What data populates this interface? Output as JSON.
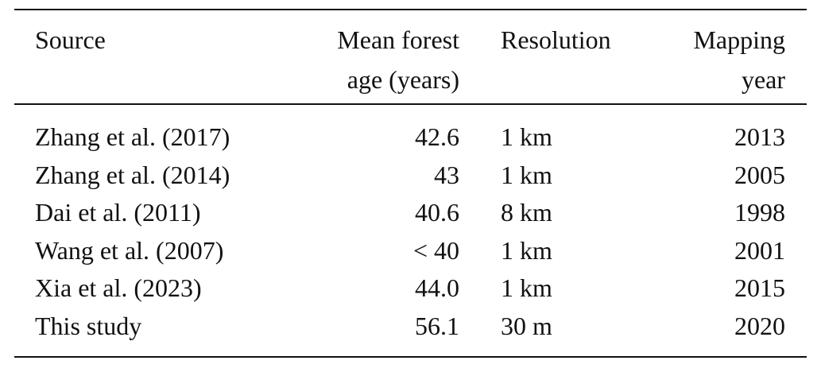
{
  "table": {
    "headers": [
      {
        "line1": "Source",
        "line2": ""
      },
      {
        "line1": "Mean forest",
        "line2": "age (years)"
      },
      {
        "line1": "Resolution",
        "line2": ""
      },
      {
        "line1": "Mapping",
        "line2": "year"
      }
    ],
    "rows": [
      [
        "Zhang et al. (2017)",
        "42.6",
        "1 km",
        "2013"
      ],
      [
        "Zhang et al. (2014)",
        "43",
        "1 km",
        "2005"
      ],
      [
        "Dai et al. (2011)",
        "40.6",
        "8 km",
        "1998"
      ],
      [
        "Wang et al. (2007)",
        "< 40",
        "1 km",
        "2001"
      ],
      [
        "Xia et al. (2023)",
        "44.0",
        "1 km",
        "2015"
      ],
      [
        "This study",
        "56.1",
        "30 m",
        "2020"
      ]
    ]
  }
}
